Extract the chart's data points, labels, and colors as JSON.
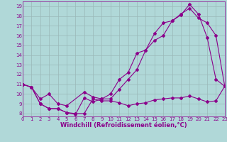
{
  "line1_x": [
    0,
    1,
    2,
    3,
    4,
    5,
    6,
    7,
    8,
    9,
    10,
    11,
    12,
    13,
    14,
    15,
    16,
    17,
    18,
    19,
    20,
    21,
    22,
    23
  ],
  "line1_y": [
    11.0,
    10.7,
    9.0,
    8.5,
    8.5,
    8.1,
    8.0,
    8.0,
    9.5,
    9.3,
    9.3,
    9.1,
    8.8,
    9.0,
    9.1,
    9.4,
    9.5,
    9.6,
    9.6,
    9.8,
    9.5,
    9.2,
    9.3,
    10.8
  ],
  "line2_x": [
    0,
    1,
    2,
    3,
    4,
    5,
    6,
    7,
    8,
    9,
    10,
    11,
    12,
    13,
    14,
    15,
    16,
    17,
    18,
    19,
    20,
    21,
    22,
    23
  ],
  "line2_y": [
    11.0,
    10.7,
    9.0,
    8.5,
    8.5,
    8.1,
    7.9,
    9.6,
    9.2,
    9.5,
    10.0,
    11.5,
    12.2,
    14.2,
    14.5,
    16.2,
    17.3,
    17.5,
    18.1,
    19.2,
    18.2,
    15.8,
    11.5,
    10.8
  ],
  "line3_x": [
    0,
    1,
    2,
    3,
    4,
    5,
    7,
    8,
    9,
    10,
    11,
    12,
    13,
    14,
    15,
    16,
    17,
    18,
    19,
    20,
    21,
    22,
    23
  ],
  "line3_y": [
    11.0,
    10.7,
    9.5,
    10.0,
    9.0,
    8.8,
    10.2,
    9.7,
    9.5,
    9.5,
    10.5,
    11.5,
    12.5,
    14.5,
    15.5,
    16.0,
    17.5,
    18.2,
    18.8,
    17.8,
    17.3,
    16.0,
    10.8
  ],
  "line_color": "#8b008b",
  "bg_color": "#b0d8d8",
  "grid_color": "#9ab8b8",
  "xlabel": "Windchill (Refroidissement éolien,°C)",
  "xlim": [
    0,
    23
  ],
  "ylim": [
    7.7,
    19.5
  ],
  "xticks": [
    0,
    1,
    2,
    3,
    4,
    5,
    6,
    7,
    8,
    9,
    10,
    11,
    12,
    13,
    14,
    15,
    16,
    17,
    18,
    19,
    20,
    21,
    22,
    23
  ],
  "yticks": [
    8,
    9,
    10,
    11,
    12,
    13,
    14,
    15,
    16,
    17,
    18,
    19
  ],
  "tick_fontsize": 5.0,
  "xlabel_fontsize": 6.0,
  "marker": "D",
  "marker_size": 2.0,
  "line_width": 0.8
}
